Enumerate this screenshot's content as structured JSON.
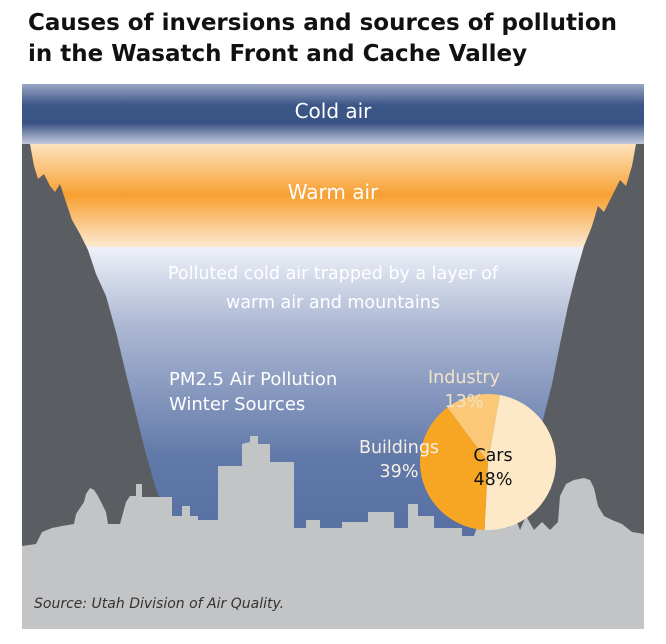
{
  "title": "Causes of inversions and sources of pollution in the Wasatch Front and Cache Valley",
  "layers": {
    "cold": "Cold air",
    "warm": "Warm air",
    "trapped_line1": "Polluted cold air trapped by a layer of",
    "trapped_line2": "warm air and mountains"
  },
  "pie_heading": {
    "line1": "PM2.5 Air Pollution",
    "line2": "Winter Sources"
  },
  "source": "Source: Utah Division of Air Quality.",
  "colors": {
    "cars": "#fde9c8",
    "buildings": "#f6a623",
    "industry": "#fbc878",
    "cold_air": "#3f5a8f",
    "warm_air": "#f9a335",
    "mountain": "#5a5d61",
    "city": "#c3c4c6"
  },
  "chart_data": {
    "type": "pie",
    "title": "PM2.5 Air Pollution Winter Sources",
    "slices": [
      {
        "label": "Cars",
        "value": 48,
        "display": "48%"
      },
      {
        "label": "Buildings",
        "value": 39,
        "display": "39%"
      },
      {
        "label": "Industry",
        "value": 13,
        "display": "13%"
      }
    ]
  }
}
